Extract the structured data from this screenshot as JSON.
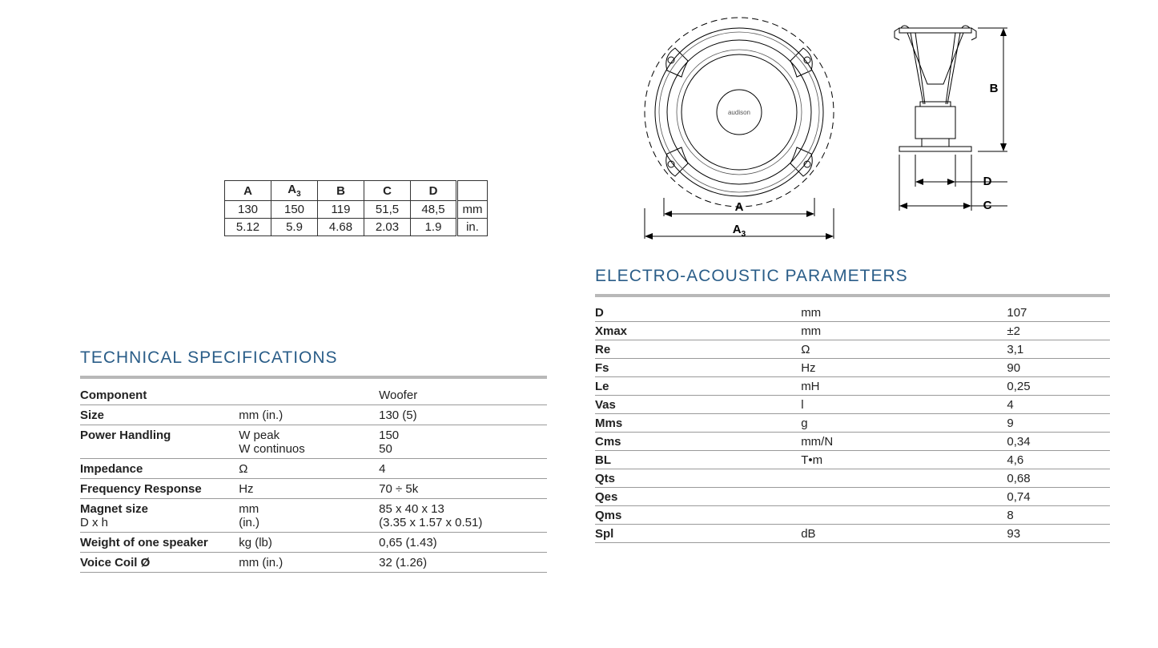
{
  "dim_table": {
    "headers": [
      "A",
      "A₃",
      "B",
      "C",
      "D"
    ],
    "row_mm": [
      "130",
      "150",
      "119",
      "51,5",
      "48,5"
    ],
    "row_in": [
      "5.12",
      "5.9",
      "4.68",
      "2.03",
      "1.9"
    ],
    "unit_mm": "mm",
    "unit_in": "in."
  },
  "tech": {
    "title": "TECHNICAL SPECIFICATIONS",
    "rows": [
      {
        "c1": "Component",
        "c2": "",
        "c3": "Woofer"
      },
      {
        "c1": "Size",
        "c2": "mm (in.)",
        "c3": "130 (5)"
      },
      {
        "c1": "Power Handling",
        "c2": "W peak",
        "c3": "150",
        "c2b": "W continuos",
        "c3b": "50"
      },
      {
        "c1": "Impedance",
        "c2": "Ω",
        "c3": "4"
      },
      {
        "c1": "Frequency Response",
        "c2": "Hz",
        "c3": "70 ÷ 5k"
      },
      {
        "c1": "Magnet size",
        "c2": "mm",
        "c3": "85 x 40 x 13",
        "c1b": "D x h",
        "c2b": "(in.)",
        "c3b": "(3.35 x 1.57 x 0.51)"
      },
      {
        "c1": "Weight of one speaker",
        "c2": "kg (lb)",
        "c3": "0,65 (1.43)"
      },
      {
        "c1": "Voice Coil Ø",
        "c2": "mm (in.)",
        "c3": "32 (1.26)"
      }
    ]
  },
  "params": {
    "title": "ELECTRO-ACOUSTIC PARAMETERS",
    "rows": [
      {
        "p1": "D",
        "p2": "mm",
        "p3": "107"
      },
      {
        "p1": "Xmax",
        "p2": "mm",
        "p3": "±2"
      },
      {
        "p1": "Re",
        "p2": "Ω",
        "p3": "3,1"
      },
      {
        "p1": "Fs",
        "p2": "Hz",
        "p3": "90"
      },
      {
        "p1": "Le",
        "p2": "mH",
        "p3": "0,25"
      },
      {
        "p1": "Vas",
        "p2": "l",
        "p3": "4"
      },
      {
        "p1": "Mms",
        "p2": "g",
        "p3": "9"
      },
      {
        "p1": "Cms",
        "p2": "mm/N",
        "p3": "0,34"
      },
      {
        "p1": "BL",
        "p2": "T•m",
        "p3": "4,6"
      },
      {
        "p1": "Qts",
        "p2": "",
        "p3": "0,68"
      },
      {
        "p1": "Qes",
        "p2": "",
        "p3": "0,74"
      },
      {
        "p1": "Qms",
        "p2": "",
        "p3": "8"
      },
      {
        "p1": "Spl",
        "p2": "dB",
        "p3": "93"
      }
    ]
  },
  "diagram": {
    "brand": "audison",
    "labels": {
      "A": "A",
      "A3": "A",
      "A3sub": "3",
      "B": "B",
      "C": "C",
      "D": "D"
    }
  },
  "colors": {
    "heading": "#2a5d88",
    "rule": "#b8b8b8",
    "border": "#9a9a9a",
    "text": "#222222",
    "line": "#000000"
  }
}
